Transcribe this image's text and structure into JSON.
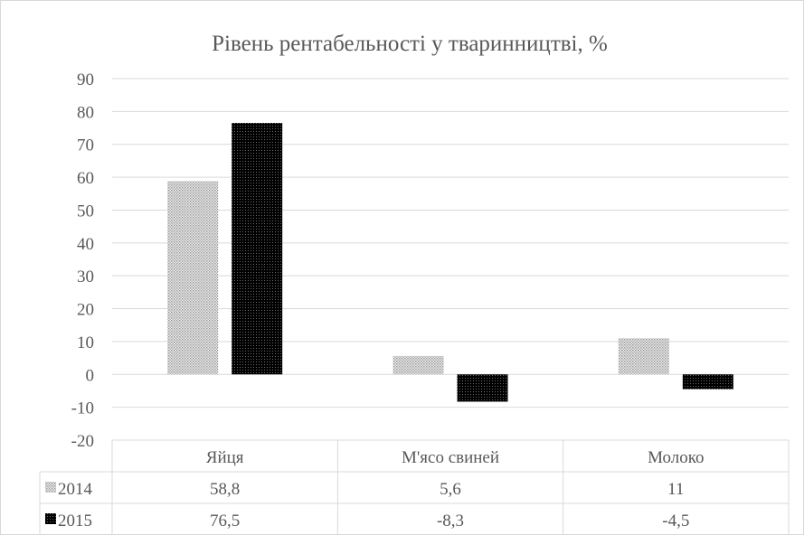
{
  "chart_data": {
    "type": "bar",
    "title": "Рівень рентабельності у тваринництві, %",
    "categories": [
      "Яйця",
      "М'ясо свиней",
      "Молоко"
    ],
    "series": [
      {
        "name": "2014",
        "values": [
          58.8,
          5.6,
          11
        ],
        "labels": [
          "58,8",
          "5,6",
          "11"
        ],
        "color": "#bfbfbf",
        "pattern": "light-dots"
      },
      {
        "name": "2015",
        "values": [
          76.5,
          -8.3,
          -4.5
        ],
        "labels": [
          "76,5",
          "-8,3",
          "-4,5"
        ],
        "color": "#000000",
        "pattern": "dark-dots"
      }
    ],
    "ylim": [
      -20,
      90
    ],
    "yticks": [
      "90",
      "80",
      "70",
      "60",
      "50",
      "40",
      "30",
      "20",
      "10",
      "0",
      "-10",
      "-20"
    ],
    "ytick_values": [
      90,
      80,
      70,
      60,
      50,
      40,
      30,
      20,
      10,
      0,
      -10,
      -20
    ],
    "grid": true,
    "legend": "data-table"
  }
}
